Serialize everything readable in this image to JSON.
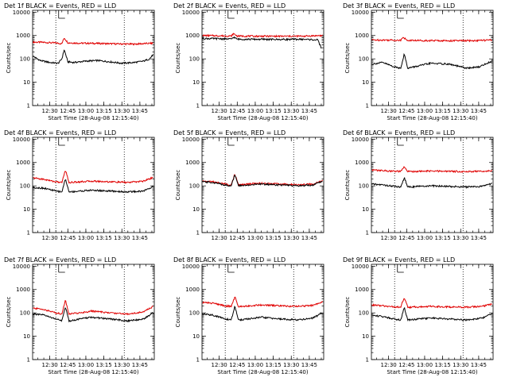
{
  "chart_data": [
    {
      "type": "line",
      "title": "Det 1f BLACK = Events, RED = LLD",
      "xlabel": "Start Time (28-Aug-08 12:15:40)",
      "ylabel": "Counts/sec",
      "xticks": [
        "12:30",
        "12:45",
        "13:00",
        "13:15",
        "13:30",
        "13:45"
      ],
      "yticks": [
        "1",
        "10",
        "100",
        "1000",
        "10000"
      ],
      "ylim": [
        1,
        12000
      ],
      "yscale": "log",
      "xlim": [
        "12:15:40",
        "13:57:00"
      ],
      "vlines": [
        "12:35",
        "13:32"
      ],
      "marker": "12:40",
      "legend": "in title",
      "series": [
        {
          "color": "#000000",
          "x": [
            "12:16",
            "12:22",
            "12:30",
            "12:37",
            "12:40",
            "12:42",
            "12:45",
            "12:50",
            "13:00",
            "13:10",
            "13:20",
            "13:30",
            "13:40",
            "13:48",
            "13:53",
            "13:56"
          ],
          "values": [
            130,
            85,
            70,
            65,
            100,
            250,
            75,
            70,
            80,
            85,
            75,
            65,
            70,
            80,
            100,
            150
          ]
        },
        {
          "color": "#e00000",
          "x": [
            "12:16",
            "12:25",
            "12:35",
            "12:40",
            "12:42",
            "12:45",
            "12:55",
            "13:10",
            "13:25",
            "13:40",
            "13:56"
          ],
          "values": [
            520,
            510,
            480,
            450,
            800,
            490,
            470,
            460,
            440,
            430,
            470
          ]
        }
      ]
    },
    {
      "type": "line",
      "title": "Det 2f BLACK = Events, RED = LLD",
      "xlabel": "Start Time (28-Aug-08 12:15:40)",
      "ylabel": "Counts/sec",
      "xticks": [
        "12:30",
        "12:45",
        "13:00",
        "13:15",
        "13:30",
        "13:45"
      ],
      "yticks": [
        "1",
        "10",
        "100",
        "1000",
        "10000"
      ],
      "ylim": [
        1,
        12000
      ],
      "yscale": "log",
      "xlim": [
        "12:15:40",
        "13:57:00"
      ],
      "vlines": [
        "12:35",
        "13:32"
      ],
      "marker": "12:40",
      "legend": "in title",
      "series": [
        {
          "color": "#000000",
          "x": [
            "12:16",
            "12:30",
            "12:40",
            "12:42",
            "12:45",
            "13:00",
            "13:20",
            "13:40",
            "13:52",
            "13:55"
          ],
          "values": [
            750,
            730,
            700,
            850,
            700,
            690,
            680,
            690,
            650,
            300
          ]
        },
        {
          "color": "#e00000",
          "x": [
            "12:16",
            "12:30",
            "12:40",
            "12:42",
            "12:45",
            "13:00",
            "13:20",
            "13:40",
            "13:56"
          ],
          "values": [
            1000,
            980,
            950,
            1200,
            950,
            940,
            930,
            940,
            1000
          ]
        }
      ]
    },
    {
      "type": "line",
      "title": "Det 3f BLACK = Events, RED = LLD",
      "xlabel": "Start Time (28-Aug-08 12:15:40)",
      "ylabel": "Counts/sec",
      "xticks": [
        "12:30",
        "12:45",
        "13:00",
        "13:15",
        "13:30",
        "13:45"
      ],
      "yticks": [
        "1",
        "10",
        "100",
        "1000",
        "10000"
      ],
      "ylim": [
        1,
        12000
      ],
      "yscale": "log",
      "xlim": [
        "12:15:40",
        "13:57:00"
      ],
      "vlines": [
        "12:35",
        "13:32"
      ],
      "marker": "12:40",
      "legend": "in title",
      "series": [
        {
          "color": "#000000",
          "x": [
            "12:16",
            "12:25",
            "12:35",
            "12:40",
            "12:43",
            "12:46",
            "12:55",
            "13:05",
            "13:20",
            "13:35",
            "13:45",
            "13:56"
          ],
          "values": [
            60,
            70,
            45,
            40,
            160,
            40,
            50,
            65,
            60,
            40,
            45,
            80
          ]
        },
        {
          "color": "#e00000",
          "x": [
            "12:16",
            "12:30",
            "12:40",
            "12:42",
            "12:45",
            "13:00",
            "13:20",
            "13:40",
            "13:56"
          ],
          "values": [
            650,
            640,
            620,
            900,
            620,
            610,
            600,
            600,
            640
          ]
        }
      ]
    },
    {
      "type": "line",
      "title": "Det 4f BLACK = Events, RED = LLD",
      "xlabel": "",
      "ylabel": "Counts/sec",
      "xticks": [
        "12:30",
        "12:45",
        "13:00",
        "13:15",
        "13:30",
        "13:45"
      ],
      "yticks": [
        "1",
        "10",
        "100",
        "1000",
        "10000"
      ],
      "ylim": [
        1,
        12000
      ],
      "yscale": "log",
      "xlim": [
        "12:15:40",
        "13:57:00"
      ],
      "vlines": [
        "12:35",
        "13:32"
      ],
      "marker": "12:40",
      "legend": "in title",
      "series": [
        {
          "color": "#000000",
          "x": [
            "12:16",
            "12:25",
            "12:35",
            "12:40",
            "12:43",
            "12:46",
            "12:55",
            "13:05",
            "13:20",
            "13:35",
            "13:48",
            "13:56"
          ],
          "values": [
            85,
            80,
            60,
            55,
            200,
            55,
            60,
            65,
            60,
            55,
            60,
            95
          ]
        },
        {
          "color": "#e00000",
          "x": [
            "12:16",
            "12:25",
            "12:35",
            "12:40",
            "12:43",
            "12:46",
            "12:55",
            "13:05",
            "13:20",
            "13:35",
            "13:48",
            "13:56"
          ],
          "values": [
            220,
            190,
            150,
            140,
            480,
            140,
            150,
            160,
            150,
            140,
            160,
            230
          ]
        }
      ]
    },
    {
      "type": "line",
      "title": "Det 5f BLACK = Events, RED = LLD",
      "xlabel": "",
      "ylabel": "Counts/sec",
      "xticks": [
        "12:30",
        "12:45",
        "13:00",
        "13:15",
        "13:30",
        "13:45"
      ],
      "yticks": [
        "1",
        "10",
        "100",
        "1000",
        "10000"
      ],
      "ylim": [
        1,
        12000
      ],
      "yscale": "log",
      "xlim": [
        "12:15:40",
        "13:57:00"
      ],
      "vlines": [
        "12:35",
        "13:32"
      ],
      "marker": "12:40",
      "legend": "in title",
      "series": [
        {
          "color": "#000000",
          "x": [
            "12:16",
            "12:25",
            "12:35",
            "12:40",
            "12:43",
            "12:46",
            "12:55",
            "13:05",
            "13:20",
            "13:35",
            "13:48",
            "13:56"
          ],
          "values": [
            150,
            140,
            110,
            100,
            300,
            100,
            110,
            120,
            110,
            100,
            110,
            160
          ]
        },
        {
          "color": "#e00000",
          "x": [
            "12:16",
            "12:25",
            "12:35",
            "12:40",
            "12:43",
            "12:46",
            "12:55",
            "13:05",
            "13:20",
            "13:35",
            "13:48",
            "13:56"
          ],
          "values": [
            160,
            150,
            120,
            110,
            320,
            110,
            120,
            130,
            120,
            110,
            120,
            170
          ]
        }
      ]
    },
    {
      "type": "line",
      "title": "Det 6f BLACK = Events, RED = LLD",
      "xlabel": "",
      "ylabel": "Counts/sec",
      "xticks": [
        "12:30",
        "12:45",
        "13:00",
        "13:15",
        "13:30",
        "13:45"
      ],
      "yticks": [
        "1",
        "10",
        "100",
        "1000",
        "10000"
      ],
      "ylim": [
        1,
        12000
      ],
      "yscale": "log",
      "xlim": [
        "12:15:40",
        "13:57:00"
      ],
      "vlines": [
        "12:35",
        "13:32"
      ],
      "marker": "12:40",
      "legend": "in title",
      "series": [
        {
          "color": "#000000",
          "x": [
            "12:16",
            "12:25",
            "12:35",
            "12:40",
            "12:43",
            "12:46",
            "12:55",
            "13:05",
            "13:20",
            "13:35",
            "13:48",
            "13:56"
          ],
          "values": [
            120,
            110,
            95,
            90,
            220,
            90,
            95,
            100,
            95,
            90,
            95,
            130
          ]
        },
        {
          "color": "#e00000",
          "x": [
            "12:16",
            "12:25",
            "12:35",
            "12:40",
            "12:43",
            "12:46",
            "12:55",
            "13:05",
            "13:20",
            "13:35",
            "13:48",
            "13:56"
          ],
          "values": [
            480,
            450,
            420,
            410,
            650,
            410,
            420,
            430,
            420,
            410,
            420,
            460
          ]
        }
      ]
    },
    {
      "type": "line",
      "title": "Det 7f BLACK = Events, RED = LLD",
      "xlabel": "Start Time (28-Aug-08 12:15:40)",
      "ylabel": "Counts/sec",
      "xticks": [
        "12:30",
        "12:45",
        "13:00",
        "13:15",
        "13:30",
        "13:45"
      ],
      "yticks": [
        "1",
        "10",
        "100",
        "1000",
        "10000"
      ],
      "ylim": [
        1,
        12000
      ],
      "yscale": "log",
      "xlim": [
        "12:15:40",
        "13:57:00"
      ],
      "vlines": [
        "12:35",
        "13:32"
      ],
      "marker": "12:40",
      "legend": "in title",
      "series": [
        {
          "color": "#000000",
          "x": [
            "12:16",
            "12:25",
            "12:35",
            "12:40",
            "12:43",
            "12:46",
            "12:55",
            "13:05",
            "13:20",
            "13:35",
            "13:48",
            "13:56"
          ],
          "values": [
            90,
            80,
            55,
            45,
            180,
            45,
            55,
            65,
            55,
            45,
            55,
            100
          ]
        },
        {
          "color": "#e00000",
          "x": [
            "12:16",
            "12:25",
            "12:35",
            "12:40",
            "12:43",
            "12:46",
            "12:55",
            "13:05",
            "13:20",
            "13:35",
            "13:48",
            "13:56"
          ],
          "values": [
            160,
            140,
            100,
            90,
            350,
            90,
            100,
            120,
            100,
            90,
            110,
            190
          ]
        }
      ]
    },
    {
      "type": "line",
      "title": "Det 8f BLACK = Events, RED = LLD",
      "xlabel": "Start Time (28-Aug-08 12:15:40)",
      "ylabel": "Counts/sec",
      "xticks": [
        "12:30",
        "12:45",
        "13:00",
        "13:15",
        "13:30",
        "13:45"
      ],
      "yticks": [
        "1",
        "10",
        "100",
        "1000",
        "10000"
      ],
      "ylim": [
        1,
        12000
      ],
      "yscale": "log",
      "xlim": [
        "12:15:40",
        "13:57:00"
      ],
      "vlines": [
        "12:35",
        "13:32"
      ],
      "marker": "12:40",
      "legend": "in title",
      "series": [
        {
          "color": "#000000",
          "x": [
            "12:16",
            "12:25",
            "12:35",
            "12:40",
            "12:43",
            "12:46",
            "12:55",
            "13:05",
            "13:20",
            "13:35",
            "13:48",
            "13:56"
          ],
          "values": [
            90,
            80,
            55,
            50,
            190,
            50,
            55,
            65,
            55,
            50,
            60,
            100
          ]
        },
        {
          "color": "#e00000",
          "x": [
            "12:16",
            "12:25",
            "12:35",
            "12:40",
            "12:43",
            "12:46",
            "12:55",
            "13:05",
            "13:20",
            "13:35",
            "13:48",
            "13:56"
          ],
          "values": [
            280,
            260,
            200,
            190,
            480,
            190,
            200,
            220,
            200,
            190,
            210,
            300
          ]
        }
      ]
    },
    {
      "type": "line",
      "title": "Det 9f BLACK = Events, RED = LLD",
      "xlabel": "Start Time (28-Aug-08 12:15:40)",
      "ylabel": "Counts/sec",
      "xticks": [
        "12:30",
        "12:45",
        "13:00",
        "13:15",
        "13:30",
        "13:45"
      ],
      "yticks": [
        "1",
        "10",
        "100",
        "1000",
        "10000"
      ],
      "ylim": [
        1,
        12000
      ],
      "yscale": "log",
      "xlim": [
        "12:15:40",
        "13:57:00"
      ],
      "vlines": [
        "12:35",
        "13:32"
      ],
      "marker": "12:40",
      "legend": "in title",
      "series": [
        {
          "color": "#000000",
          "x": [
            "12:16",
            "12:25",
            "12:35",
            "12:40",
            "12:43",
            "12:46",
            "12:55",
            "13:05",
            "13:20",
            "13:35",
            "13:48",
            "13:56"
          ],
          "values": [
            80,
            70,
            55,
            50,
            170,
            50,
            55,
            60,
            55,
            50,
            60,
            90
          ]
        },
        {
          "color": "#e00000",
          "x": [
            "12:16",
            "12:25",
            "12:35",
            "12:40",
            "12:43",
            "12:46",
            "12:55",
            "13:05",
            "13:20",
            "13:35",
            "13:48",
            "13:56"
          ],
          "values": [
            220,
            200,
            180,
            175,
            450,
            175,
            180,
            190,
            180,
            175,
            190,
            240
          ]
        }
      ]
    }
  ]
}
